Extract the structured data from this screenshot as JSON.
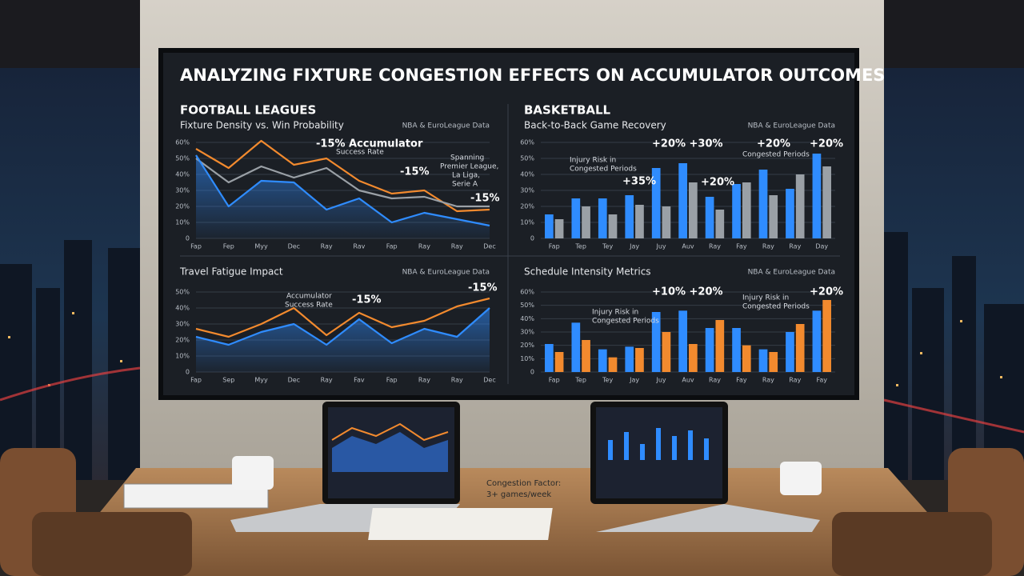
{
  "screen_title": "ANALYZING FIXTURE CONGESTION EFFECTS ON ACCUMULATOR OUTCOMES",
  "chart_data": [
    {
      "type": "line",
      "section": "FOOTBALL LEAGUES",
      "title": "Fixture Density vs. Win Probability",
      "source": "NBA & EuroLeague Data",
      "categories": [
        "Fap",
        "Fep",
        "Myy",
        "Dec",
        "Ray",
        "Rav",
        "Fap",
        "Ray",
        "Ray",
        "Dec"
      ],
      "series": [
        {
          "color": "#f28a2e",
          "values": [
            56,
            44,
            61,
            46,
            50,
            36,
            28,
            30,
            17,
            18
          ]
        },
        {
          "color": "#9aa0a6",
          "values": [
            50,
            35,
            45,
            38,
            44,
            30,
            25,
            26,
            20,
            20
          ]
        },
        {
          "color": "#2f8cff",
          "values": [
            52,
            20,
            36,
            35,
            18,
            25,
            10,
            16,
            12,
            8
          ]
        }
      ],
      "ylim": [
        0,
        60
      ],
      "yticks": [
        0,
        {
          "value": 10,
          "label": "10%"
        },
        {
          "value": 20,
          "label": "20%"
        },
        {
          "value": 30,
          "label": "30%"
        },
        {
          "value": 40,
          "label": "40%"
        },
        {
          "value": 50,
          "label": "50%"
        },
        {
          "value": 60,
          "label": "60%"
        }
      ],
      "annotations": [
        "-15% Accumulator",
        "Success Rate",
        "-15%",
        "Spanning",
        "Premier League,",
        "La Liga,",
        "Serie A",
        "-15%"
      ]
    },
    {
      "type": "bar",
      "section": "BASKETBALL",
      "title": "Back-to-Back Game Recovery",
      "source": "NBA & EuroLeague Data",
      "categories": [
        "Fap",
        "Tep",
        "Tey",
        "Jay",
        "Juy",
        "Auv",
        "Ray",
        "Fay",
        "Ray",
        "Ray",
        "Day"
      ],
      "series": [
        {
          "color": "#2f8cff",
          "values": [
            15,
            25,
            25,
            27,
            44,
            47,
            26,
            34,
            43,
            31,
            53
          ]
        },
        {
          "color": "#9aa0a6",
          "values": [
            12,
            20,
            15,
            21,
            20,
            35,
            18,
            35,
            27,
            40,
            45
          ]
        }
      ],
      "ylim": [
        0,
        60
      ],
      "yticks": [
        0,
        {
          "value": 10,
          "label": "10%"
        },
        {
          "value": 20,
          "label": "20%"
        },
        {
          "value": 30,
          "label": "30%"
        },
        {
          "value": 40,
          "label": "40%"
        },
        {
          "value": 50,
          "label": "50%"
        },
        {
          "value": 60,
          "label": "60%"
        }
      ],
      "annotations": [
        "+20% +30%",
        "Injury Risk in",
        "Congested Periods",
        "+35%",
        "+20%",
        "+20%",
        "Congested Periods",
        "+20%"
      ]
    },
    {
      "type": "line",
      "title": "Travel Fatigue Impact",
      "source": "NBA & EuroLeague Data",
      "categories": [
        "Fap",
        "Sep",
        "Myy",
        "Dec",
        "Ray",
        "Fav",
        "Fap",
        "Ray",
        "Ray",
        "Dec"
      ],
      "series": [
        {
          "color": "#f28a2e",
          "values": [
            27,
            22,
            30,
            40,
            23,
            37,
            28,
            32,
            41,
            46
          ]
        },
        {
          "color": "#2f8cff",
          "values": [
            22,
            17,
            25,
            30,
            17,
            33,
            18,
            27,
            22,
            40
          ]
        }
      ],
      "ylim": [
        0,
        50
      ],
      "yticks": [
        0,
        {
          "value": 10,
          "label": "10%"
        },
        {
          "value": 20,
          "label": "20%"
        },
        {
          "value": 30,
          "label": "30%"
        },
        {
          "value": 40,
          "label": "40%"
        },
        {
          "value": 50,
          "label": "50%"
        }
      ],
      "annotations": [
        "Accumulator",
        "Success Rate",
        "-15%",
        "-15%"
      ]
    },
    {
      "type": "bar",
      "title": "Schedule Intensity Metrics",
      "source": "NBA & EuroLeague Data",
      "categories": [
        "Fap",
        "Tep",
        "Tey",
        "Jay",
        "Juy",
        "Auv",
        "Ray",
        "Fay",
        "Ray",
        "Ray",
        "Fay"
      ],
      "series": [
        {
          "color": "#2f8cff",
          "values": [
            21,
            37,
            17,
            19,
            45,
            46,
            33,
            33,
            17,
            30,
            46
          ]
        },
        {
          "color": "#f28a2e",
          "values": [
            15,
            24,
            11,
            18,
            30,
            21,
            39,
            20,
            15,
            36,
            54
          ]
        }
      ],
      "ylim": [
        0,
        60
      ],
      "yticks": [
        0,
        {
          "value": 10,
          "label": "10%"
        },
        {
          "value": 20,
          "label": "20%"
        },
        {
          "value": 30,
          "label": "30%"
        },
        {
          "value": 40,
          "label": "40%"
        },
        {
          "value": 50,
          "label": "50%"
        },
        {
          "value": 60,
          "label": "60%"
        }
      ],
      "annotations": [
        "+10% +20%",
        "Injury Risk in",
        "Congested Periods",
        "Injury Risk in",
        "Congested Periods",
        "+20%"
      ]
    }
  ],
  "note": [
    "Congestion Factor:",
    "3+ games/week"
  ]
}
